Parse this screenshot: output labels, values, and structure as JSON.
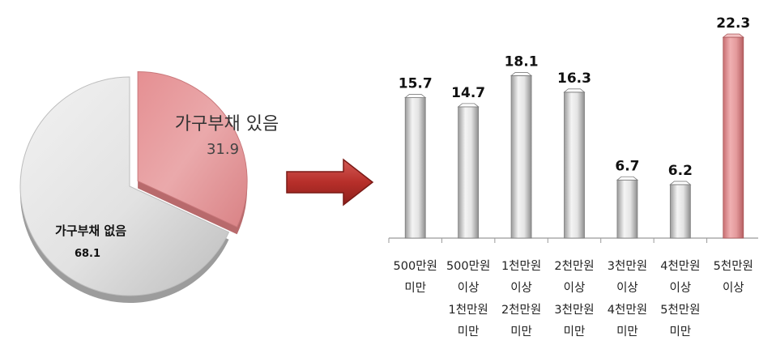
{
  "chart_data": [
    {
      "type": "pie",
      "slices": [
        {
          "label": "가구부채 있음",
          "value": 31.9,
          "value_text": "31.9",
          "color": "#e8a2a4",
          "exploded": true
        },
        {
          "label": "가구부채 없음",
          "value": 68.1,
          "value_text": "68.1",
          "color": "#e3e3e3",
          "exploded": false
        }
      ]
    },
    {
      "type": "bar",
      "categories": [
        {
          "lines": [
            "500만원",
            "미만"
          ]
        },
        {
          "lines": [
            "500만원",
            "이상",
            "1천만원",
            "미만"
          ]
        },
        {
          "lines": [
            "1천만원",
            "이상",
            "2천만원",
            "미만"
          ]
        },
        {
          "lines": [
            "2천만원",
            "이상",
            "3천만원",
            "미만"
          ]
        },
        {
          "lines": [
            "3천만원",
            "이상",
            "4천만원",
            "미만"
          ]
        },
        {
          "lines": [
            "4천만원",
            "이상",
            "5천만원",
            "미만"
          ]
        },
        {
          "lines": [
            "5천만원",
            "이상"
          ]
        }
      ],
      "values": [
        15.7,
        14.7,
        18.1,
        16.3,
        6.7,
        6.2,
        22.3
      ],
      "value_labels": [
        "15.7",
        "14.7",
        "18.1",
        "16.3",
        "6.7",
        "6.2",
        "22.3"
      ],
      "highlight_index": 6,
      "colors": {
        "default": "#d4d4d4",
        "highlight": "#e39a9c"
      },
      "ylim": [
        0,
        22.3
      ],
      "grid": false,
      "legend": "none"
    }
  ],
  "arrow": {
    "icon": "right-arrow-icon",
    "color": "#b2302b"
  }
}
